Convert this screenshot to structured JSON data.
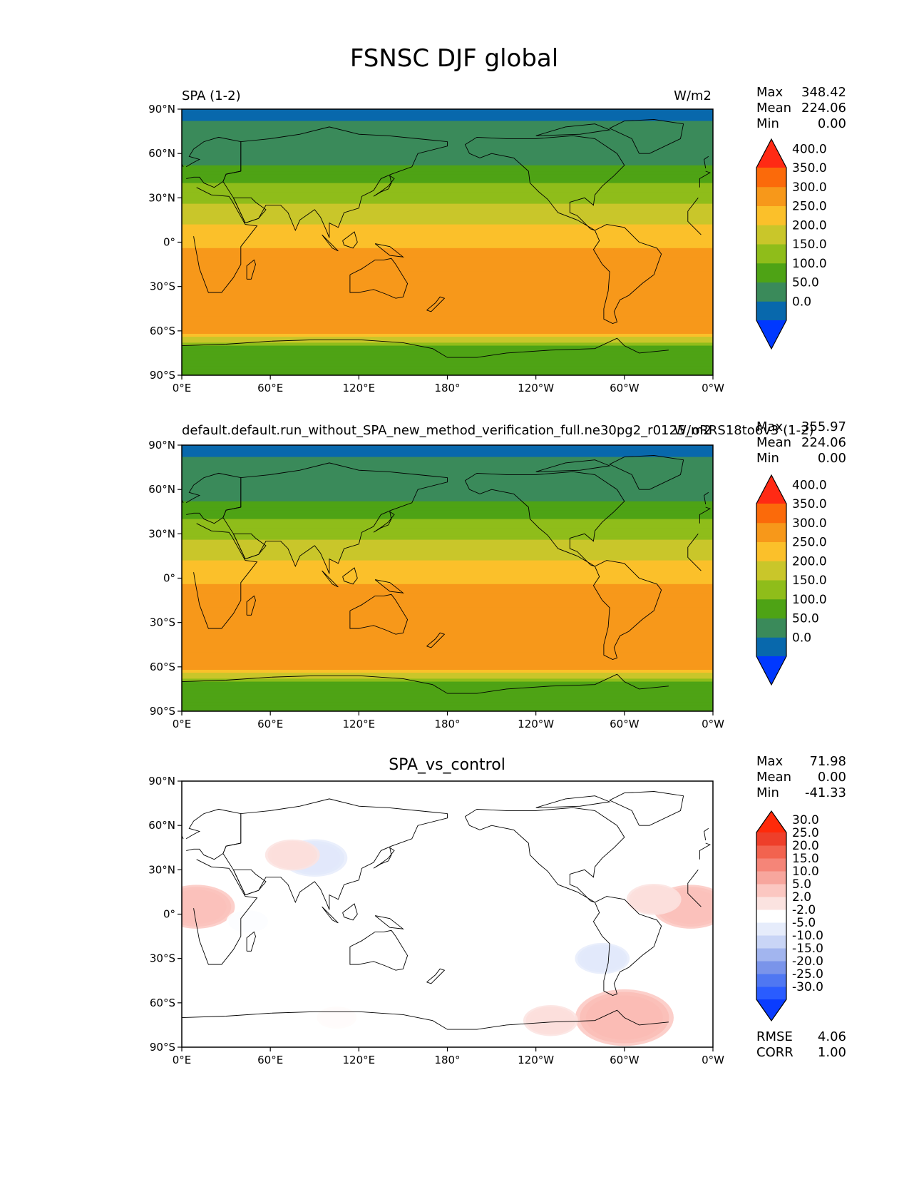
{
  "figure": {
    "title": "FSNSC DJF global",
    "lon_ticks": [
      "0°E",
      "60°E",
      "120°E",
      "180°",
      "120°W",
      "60°W",
      "0°W"
    ],
    "lat_ticks": [
      "90°N",
      "60°N",
      "30°N",
      "0°",
      "30°S",
      "60°S",
      "90°S"
    ],
    "stat_labels": {
      "max": "Max",
      "mean": "Mean",
      "min": "Min",
      "rmse": "RMSE",
      "corr": "CORR"
    }
  },
  "colors": {
    "field": [
      "#0038ff",
      "#0868ac",
      "#3a8a5a",
      "#4ea315",
      "#8fbd1a",
      "#c9c62a",
      "#fbc02a",
      "#f7981a",
      "#fb6a0a",
      "#ff2a14"
    ],
    "diff": [
      "#0a3cff",
      "#2a5cff",
      "#4f77f2",
      "#7a94ea",
      "#a2b5ef",
      "#c9d5f6",
      "#e6ecfb",
      "#ffffff",
      "#fbe3e0",
      "#fbc7c1",
      "#f7a69d",
      "#f58578",
      "#f2634f",
      "#ee3f2a",
      "#ff2a0a"
    ],
    "coast": "#000000"
  },
  "chart_data": [
    {
      "type": "heatmap",
      "title": "SPA (1-2)",
      "units": "W/m2",
      "stats": {
        "max": "348.42",
        "mean": "224.06",
        "min": "0.00"
      },
      "colorbar_levels": [
        "0.0",
        "50.0",
        "100.0",
        "150.0",
        "200.0",
        "250.0",
        "300.0",
        "350.0",
        "400.0"
      ],
      "zonal_profile": {
        "lat": [
          -90,
          -75,
          -70,
          -65,
          -60,
          -50,
          -40,
          -30,
          -20,
          -10,
          0,
          10,
          20,
          30,
          40,
          50,
          60,
          70,
          80,
          90
        ],
        "value": [
          100,
          100,
          160,
          240,
          320,
          320,
          320,
          320,
          320,
          320,
          280,
          260,
          220,
          180,
          150,
          110,
          70,
          70,
          60,
          20
        ]
      }
    },
    {
      "type": "heatmap",
      "title": "default.default.run_without_SPA_new_method_verification_full.ne30pg2_r0125_oRRS18to6v3 (1-2)",
      "units": "W/m2",
      "stats": {
        "max": "355.97",
        "mean": "224.06",
        "min": "0.00"
      },
      "colorbar_levels": [
        "0.0",
        "50.0",
        "100.0",
        "150.0",
        "200.0",
        "250.0",
        "300.0",
        "350.0",
        "400.0"
      ],
      "zonal_profile": {
        "lat": [
          -90,
          -75,
          -70,
          -65,
          -60,
          -50,
          -40,
          -30,
          -20,
          -10,
          0,
          10,
          20,
          30,
          40,
          50,
          60,
          70,
          80,
          90
        ],
        "value": [
          100,
          100,
          160,
          240,
          320,
          320,
          320,
          320,
          320,
          320,
          280,
          260,
          220,
          180,
          150,
          110,
          70,
          70,
          60,
          20
        ]
      }
    },
    {
      "type": "heatmap",
      "title": "SPA_vs_control",
      "stats": {
        "max": "71.98",
        "mean": "0.00",
        "min": "-41.33",
        "rmse": "4.06",
        "corr": "1.00"
      },
      "colorbar_levels": [
        "-30.0",
        "-25.0",
        "-20.0",
        "-15.0",
        "-10.0",
        "-5.0",
        "-2.0",
        "2.0",
        "5.0",
        "10.0",
        "15.0",
        "20.0",
        "25.0",
        "30.0"
      ],
      "anomalies": [
        {
          "lon": 10,
          "lat": 5,
          "value": 20
        },
        {
          "lon": 345,
          "lat": 5,
          "value": 20
        },
        {
          "lon": 300,
          "lat": -70,
          "value": 30
        },
        {
          "lon": 90,
          "lat": 38,
          "value": -15
        },
        {
          "lon": 75,
          "lat": 40,
          "value": 10
        },
        {
          "lon": 45,
          "lat": -5,
          "value": -5
        },
        {
          "lon": 285,
          "lat": -30,
          "value": -10
        },
        {
          "lon": 250,
          "lat": -72,
          "value": 10
        },
        {
          "lon": 105,
          "lat": -70,
          "value": 5
        },
        {
          "lon": 320,
          "lat": 10,
          "value": 10
        }
      ]
    }
  ]
}
